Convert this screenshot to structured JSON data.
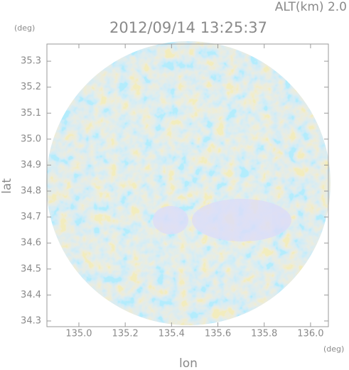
{
  "chart_data": {
    "type": "radar-map",
    "title": "2012/09/14 13:25:37",
    "annotations": [
      "ALT(km) 2.0"
    ],
    "y_unit": "(deg)",
    "x_unit": "(deg)",
    "x_label": "lon",
    "y_label": "lat",
    "xlim": [
      134.862,
      136.077
    ],
    "ylim": [
      34.278,
      35.366
    ],
    "xticks": [
      {
        "value": 135,
        "label": "135.0"
      },
      135.2,
      135.4,
      135.6,
      135.8,
      {
        "value": 136,
        "label": "136.0"
      }
    ],
    "yticks": [
      34.3,
      34.4,
      34.5,
      34.6,
      34.7,
      34.8,
      34.9,
      {
        "value": 35,
        "label": "35.0"
      },
      35.1,
      35.2,
      35.3
    ]
  }
}
